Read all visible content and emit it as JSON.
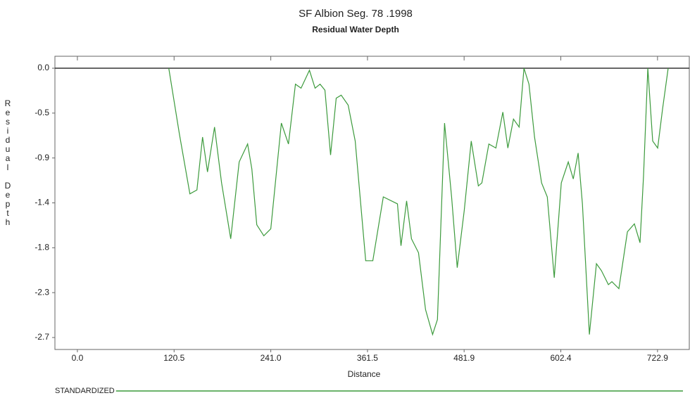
{
  "chart_data": {
    "type": "line",
    "title": "SF Albion Seg. 78 .1998",
    "subtitle": "Residual Water Depth",
    "x_label": "Distance",
    "y_label": "Residual Depth",
    "xlim": [
      -28,
      762.5
    ],
    "ylim": [
      -2.82,
      0.12
    ],
    "xticks": [
      {
        "value": 0,
        "label": "0.0"
      },
      120.5,
      {
        "value": 241,
        "label": "241.0"
      },
      361.5,
      481.9,
      602.4,
      722.9
    ],
    "yticks": [
      {
        "value": 0,
        "label": "0.0"
      },
      {
        "value": -0.45,
        "label": "-0.5"
      },
      {
        "value": -0.9,
        "label": "-0.9"
      },
      {
        "value": -1.35,
        "label": "-1.4"
      },
      {
        "value": -1.8,
        "label": "-1.8"
      },
      {
        "value": -2.25,
        "label": "-2.3"
      },
      {
        "value": -2.7,
        "label": "-2.7"
      }
    ],
    "grid": false,
    "legend": "bottom",
    "x": [
      113.9,
      127.1,
      140.2,
      149.0,
      156.0,
      162.1,
      170.9,
      179.7,
      191.1,
      201.6,
      212.1,
      217.4,
      223.5,
      232.3,
      241.0,
      254.2,
      263.0,
      271.7,
      278.7,
      289.2,
      296.2,
      302.4,
      308.5,
      315.5,
      322.5,
      328.7,
      337.4,
      346.2,
      359.3,
      368.1,
      381.2,
      398.8,
      403.2,
      410.2,
      416.3,
      425.1,
      433.8,
      442.6,
      448.7,
      457.5,
      466.3,
      473.3,
      482.0,
      490.8,
      499.6,
      504.0,
      512.7,
      521.5,
      530.2,
      536.4,
      543.4,
      550.4,
      556.5,
      562.7,
      569.7,
      578.4,
      585.5,
      594.2,
      603.0,
      611.7,
      617.9,
      624.0,
      629.3,
      638.0,
      646.8,
      653.0,
      661.7,
      666.1,
      674.8,
      685.4,
      694.1,
      701.1,
      705.5,
      710.8,
      716.9,
      723.1,
      729.2,
      736.2
    ],
    "series": [
      {
        "name": "STANDARDIZED",
        "color": "#3c9a3c",
        "values": [
          0,
          -0.66,
          -1.26,
          -1.22,
          -0.69,
          -1.04,
          -0.59,
          -1.15,
          -1.71,
          -0.94,
          -0.76,
          -1.01,
          -1.57,
          -1.68,
          -1.61,
          -0.55,
          -0.76,
          -0.16,
          -0.2,
          -0.02,
          -0.2,
          -0.16,
          -0.22,
          -0.87,
          -0.3,
          -0.27,
          -0.37,
          -0.73,
          -1.93,
          -1.93,
          -1.29,
          -1.36,
          -1.78,
          -1.33,
          -1.71,
          -1.85,
          -2.42,
          -2.67,
          -2.52,
          -0.55,
          -1.29,
          -2.0,
          -1.43,
          -0.73,
          -1.18,
          -1.15,
          -0.76,
          -0.8,
          -0.44,
          -0.8,
          -0.51,
          -0.59,
          0,
          -0.16,
          -0.69,
          -1.15,
          -1.29,
          -2.1,
          -1.15,
          -0.94,
          -1.11,
          -0.85,
          -1.36,
          -2.67,
          -1.96,
          -2.03,
          -2.17,
          -2.14,
          -2.21,
          -1.64,
          -1.56,
          -1.75,
          -1.08,
          0,
          -0.73,
          -0.8,
          -0.41,
          0
        ]
      }
    ]
  }
}
